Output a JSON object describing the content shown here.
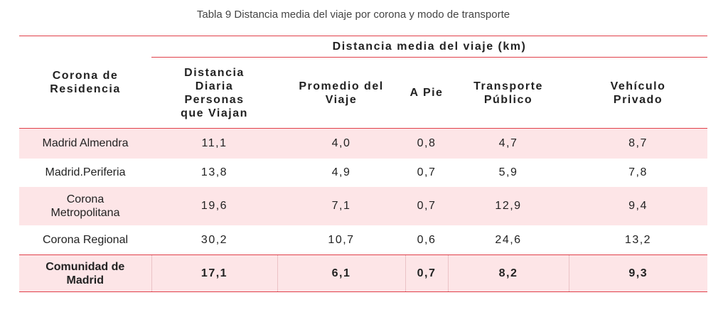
{
  "caption": "Tabla 9 Distancia media del viaje por corona y modo de transporte",
  "table": {
    "row_header": "Corona de Residencia",
    "group_header": "Distancia media del viaje (km)",
    "columns": [
      "Distancia Diaria Personas que Viajan",
      "Promedio del Viaje",
      "A Pie",
      "Transporte Público",
      "Vehículo Privado"
    ],
    "rows": [
      [
        "Madrid Almendra",
        "11,1",
        "4,0",
        "0,8",
        "4,7",
        "8,7"
      ],
      [
        "Madrid.Periferia",
        "13,8",
        "4,9",
        "0,7",
        "5,9",
        "7,8"
      ],
      [
        "Corona Metropolitana",
        "19,6",
        "7,1",
        "0,7",
        "12,9",
        "9,4"
      ],
      [
        "Corona Regional",
        "30,2",
        "10,7",
        "0,6",
        "24,6",
        "13,2"
      ],
      [
        "Comunidad de Madrid",
        "17,1",
        "6,1",
        "0,7",
        "8,2",
        "9,3"
      ]
    ]
  }
}
